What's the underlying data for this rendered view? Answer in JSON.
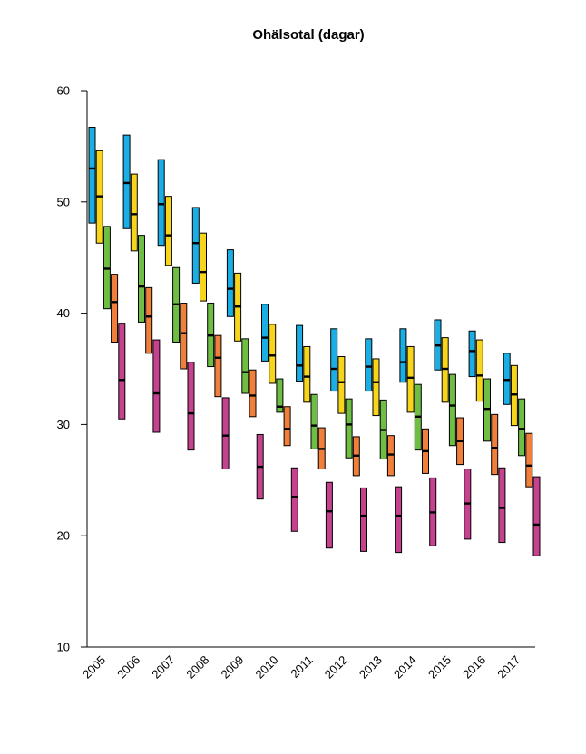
{
  "chart_data": {
    "type": "bar",
    "title": "Ohälsotal (dagar)",
    "xlabel": "",
    "ylabel": "",
    "ylim": [
      10,
      60
    ],
    "yticks": [
      10,
      20,
      30,
      40,
      50,
      60
    ],
    "categories": [
      "2005",
      "2006",
      "2007",
      "2008",
      "2009",
      "2010",
      "2011",
      "2012",
      "2013",
      "2014",
      "2015",
      "2016",
      "2017"
    ],
    "grid": false,
    "legend": "none",
    "series": [
      {
        "color": "#1aaee5",
        "low": [
          48.1,
          47.6,
          46.1,
          42.7,
          39.7,
          35.7,
          33.9,
          33.0,
          33.0,
          33.8,
          34.9,
          34.3,
          31.8
        ],
        "median": [
          53.0,
          51.7,
          49.8,
          46.3,
          42.2,
          37.8,
          35.3,
          35.0,
          35.2,
          35.6,
          37.1,
          36.6,
          34.0
        ],
        "high": [
          56.7,
          56.0,
          53.8,
          49.5,
          45.7,
          40.8,
          38.9,
          38.6,
          37.7,
          38.6,
          39.4,
          38.4,
          36.4
        ]
      },
      {
        "color": "#f7d51d",
        "low": [
          46.3,
          45.6,
          44.3,
          41.1,
          37.5,
          33.7,
          32.0,
          31.0,
          30.8,
          31.1,
          32.0,
          32.1,
          29.9
        ],
        "median": [
          50.5,
          48.9,
          47.0,
          43.7,
          40.6,
          36.2,
          34.3,
          33.8,
          33.8,
          34.2,
          35.0,
          34.4,
          32.7
        ],
        "high": [
          54.6,
          52.5,
          50.5,
          47.2,
          43.6,
          39.0,
          37.0,
          36.1,
          35.9,
          37.0,
          37.8,
          37.6,
          35.3
        ]
      },
      {
        "color": "#6fbe44",
        "low": [
          40.4,
          39.2,
          37.4,
          35.2,
          32.8,
          31.1,
          27.8,
          27.0,
          26.9,
          27.7,
          28.1,
          28.5,
          27.2
        ],
        "median": [
          44.0,
          42.4,
          40.8,
          38.0,
          34.7,
          31.6,
          29.9,
          30.0,
          29.5,
          30.7,
          31.7,
          31.4,
          29.6
        ],
        "high": [
          47.8,
          47.0,
          44.1,
          40.9,
          37.7,
          34.1,
          32.7,
          32.3,
          32.2,
          33.6,
          34.5,
          34.1,
          32.3
        ]
      },
      {
        "color": "#f07f3c",
        "low": [
          37.4,
          36.4,
          35.0,
          32.5,
          30.7,
          28.1,
          26.0,
          25.4,
          25.4,
          25.6,
          26.4,
          25.5,
          24.4
        ],
        "median": [
          41.0,
          39.7,
          38.2,
          36.0,
          32.6,
          29.6,
          27.8,
          27.2,
          27.3,
          27.6,
          28.5,
          27.9,
          26.3
        ],
        "high": [
          43.5,
          42.3,
          40.9,
          38.0,
          34.9,
          31.6,
          29.7,
          28.9,
          29.0,
          29.6,
          30.6,
          30.9,
          29.2
        ]
      },
      {
        "color": "#c5428f",
        "low": [
          30.5,
          29.3,
          27.7,
          26.0,
          23.3,
          20.4,
          18.9,
          18.6,
          18.5,
          19.1,
          19.7,
          19.4,
          18.2
        ],
        "median": [
          34.0,
          32.8,
          31.0,
          29.0,
          26.2,
          23.5,
          22.2,
          21.8,
          21.8,
          22.1,
          22.9,
          22.5,
          21.0
        ],
        "high": [
          39.1,
          37.6,
          35.6,
          32.4,
          29.1,
          26.1,
          24.8,
          24.3,
          24.4,
          25.2,
          26.0,
          26.1,
          25.3
        ]
      }
    ]
  }
}
